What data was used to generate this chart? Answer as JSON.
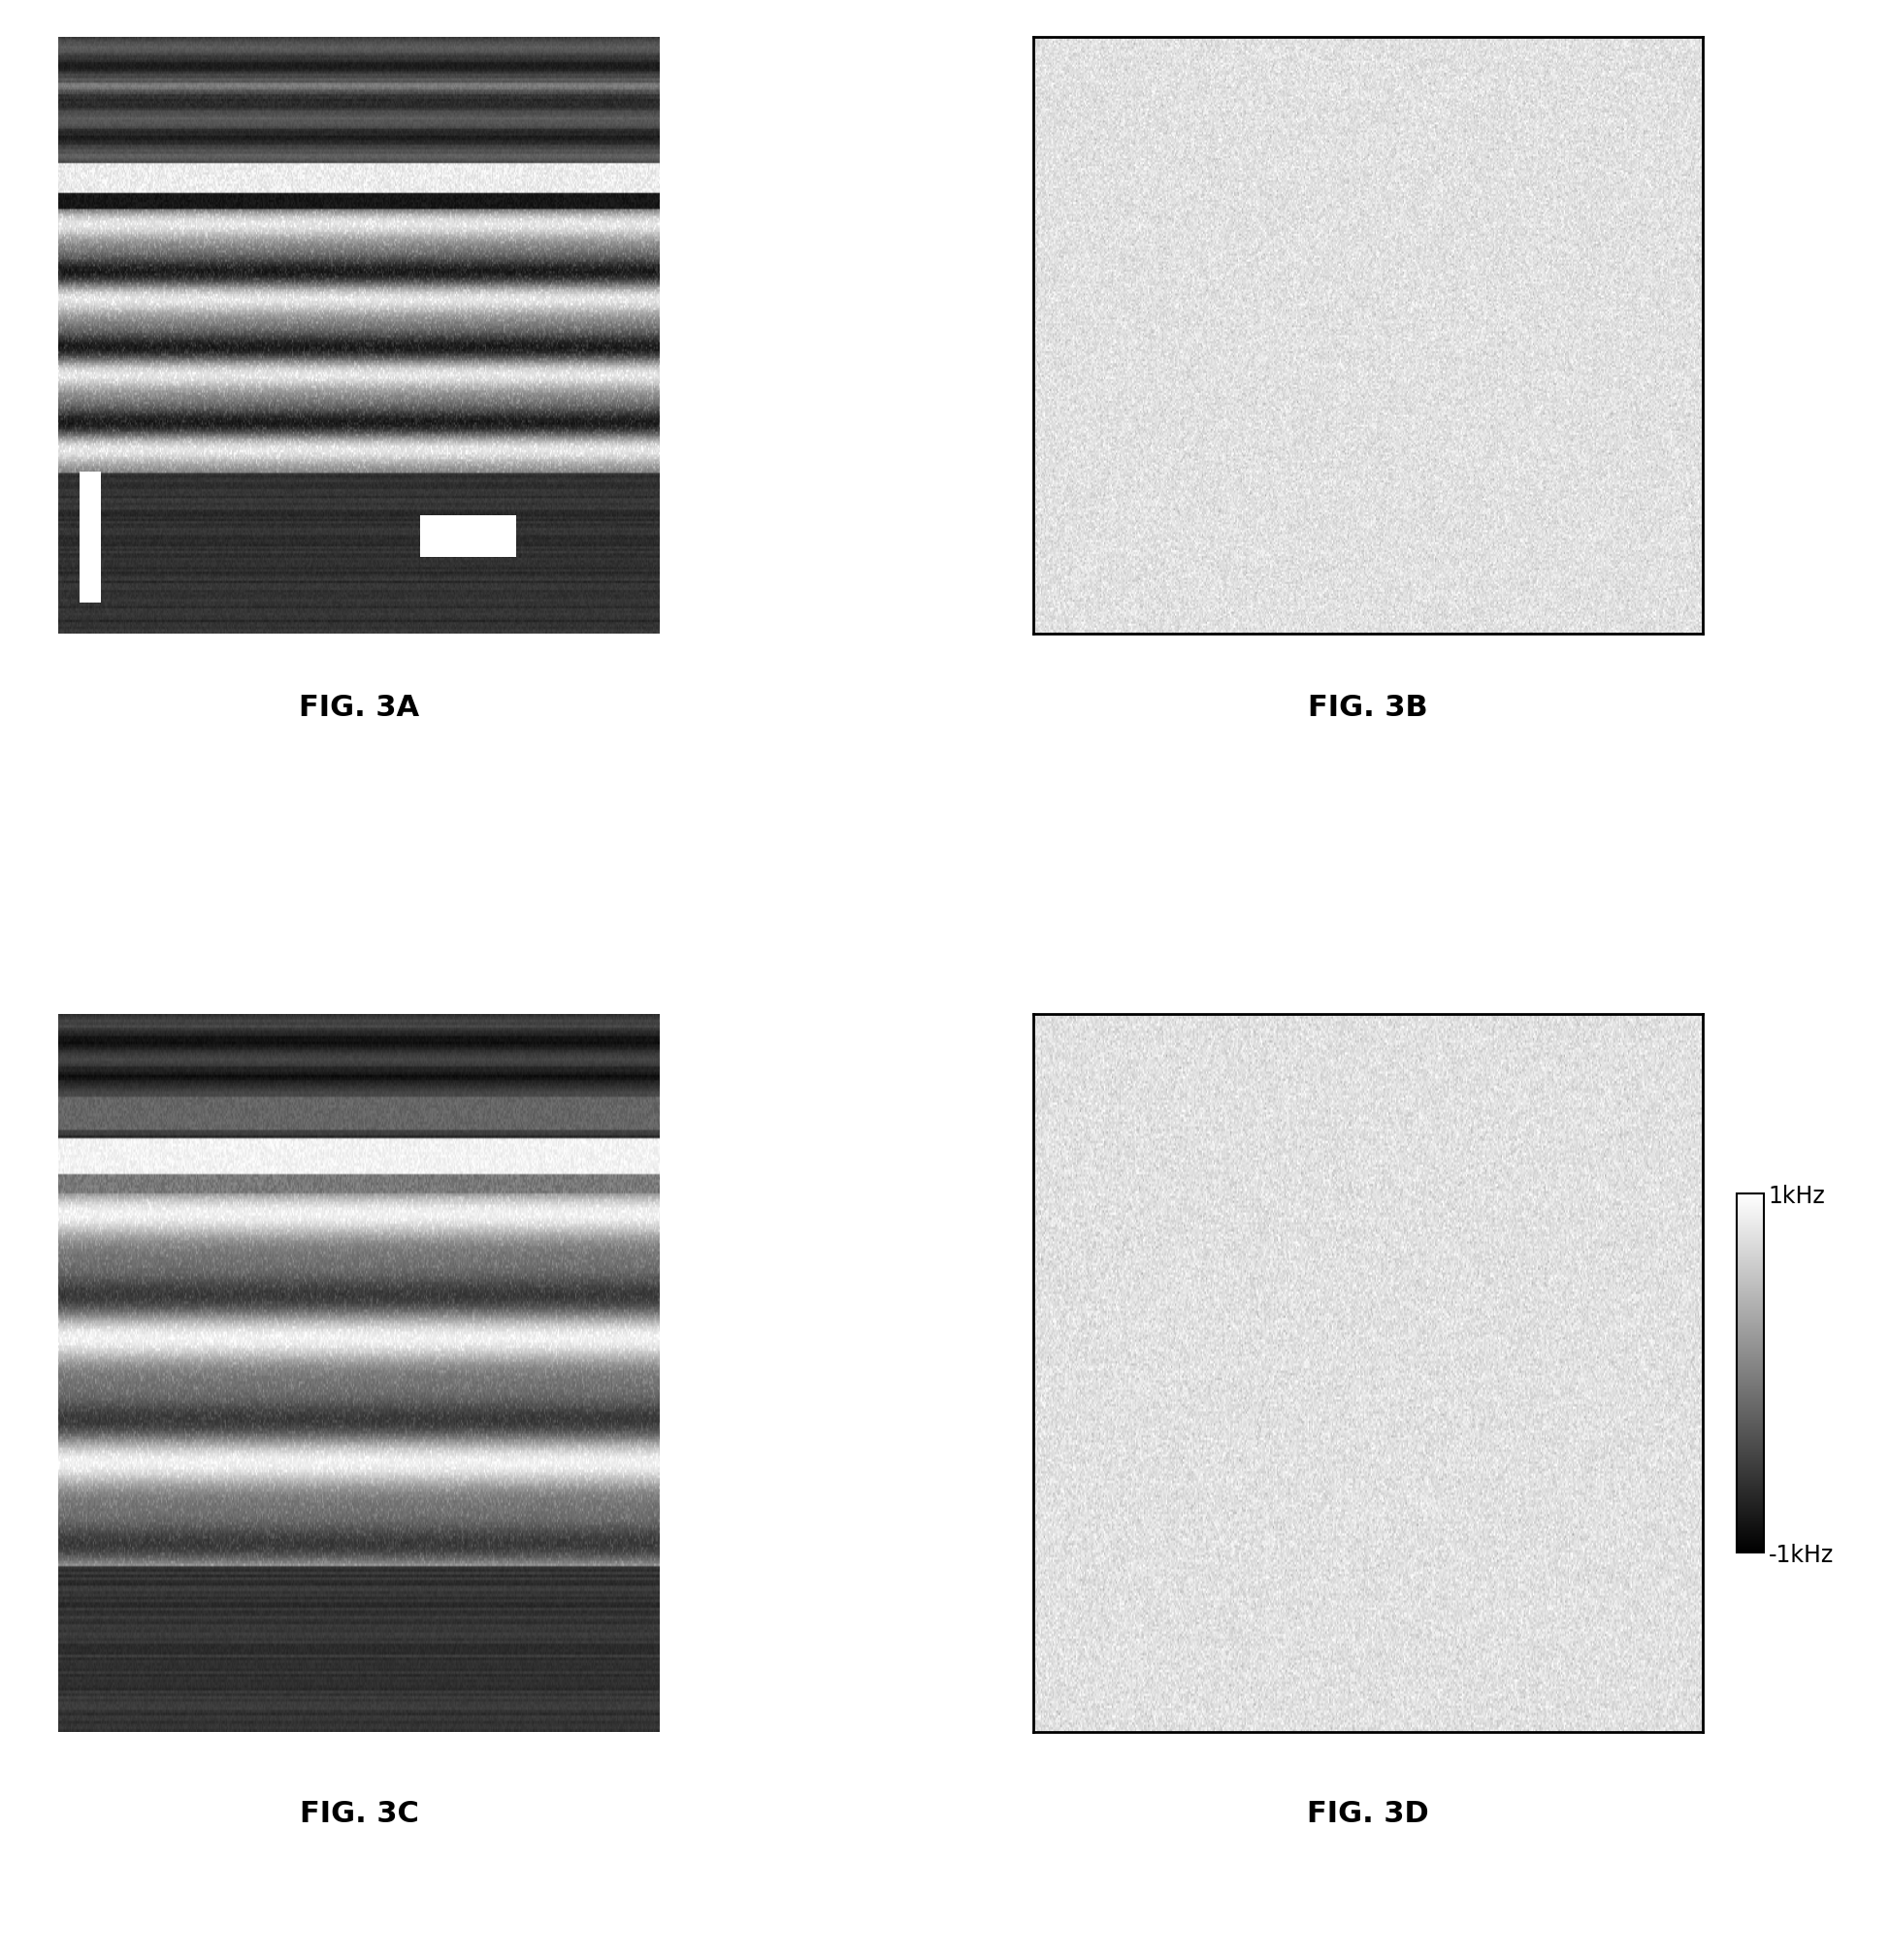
{
  "fig_labels": [
    "FIG. 3A",
    "FIG. 3B",
    "FIG. 3C",
    "FIG. 3D"
  ],
  "label_fontsize": 22,
  "label_fontweight": "bold",
  "colorbar_ticks_labels": [
    "1kHz",
    "-1kHz"
  ],
  "colorbar_fontsize": 17,
  "background_color": "#ffffff",
  "image_border_color": "#000000",
  "fig3b_mean": 0.88,
  "fig3b_std": 0.05,
  "fig3d_mean": 0.88,
  "fig3d_std": 0.05,
  "panel_aspect_3a": 1.35,
  "panel_aspect_3b": 1.1
}
